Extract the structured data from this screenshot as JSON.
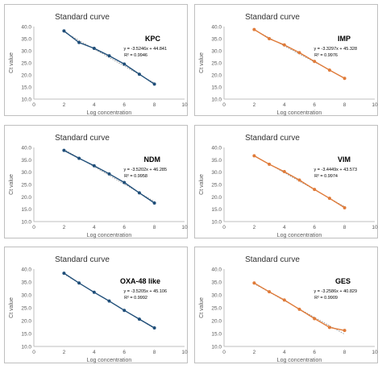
{
  "chart_data": [
    {
      "type": "scatter",
      "title": "Standard curve",
      "gene": "KPC",
      "xlabel": "Log concentration",
      "ylabel": "Ct value",
      "xlim": [
        0,
        10
      ],
      "ylim": [
        10.0,
        40.0
      ],
      "x_ticks": [
        0,
        2,
        4,
        6,
        8,
        10
      ],
      "y_ticks": [
        "10.0",
        "15.0",
        "20.0",
        "25.0",
        "30.0",
        "35.0",
        "40.0"
      ],
      "equation": "y = -3.5246x + 44.841",
      "r2": "R² = 0.9946",
      "trend": {
        "slope": -3.5246,
        "intercept": 44.841
      },
      "x": [
        2,
        3,
        4,
        5,
        6,
        7,
        8
      ],
      "y": [
        38.2,
        33.4,
        31.0,
        27.9,
        24.5,
        20.3,
        16.2
      ],
      "color": "#1f4e79"
    },
    {
      "type": "scatter",
      "title": "Standard curve",
      "gene": "IMP",
      "xlabel": "Log concentration",
      "ylabel": "Ct value",
      "xlim": [
        0,
        10
      ],
      "ylim": [
        10.0,
        40.0
      ],
      "x_ticks": [
        0,
        2,
        4,
        6,
        8,
        10
      ],
      "y_ticks": [
        "10.0",
        "15.0",
        "20.0",
        "25.0",
        "30.0",
        "35.0",
        "40.0"
      ],
      "equation": "y = -3.3297x + 45.328",
      "r2": "R² = 0.9976",
      "trend": {
        "slope": -3.3297,
        "intercept": 45.328
      },
      "x": [
        2,
        3,
        4,
        5,
        6,
        7,
        8
      ],
      "y": [
        38.8,
        35.0,
        32.4,
        29.2,
        25.6,
        22.0,
        18.6
      ],
      "color": "#e07b39"
    },
    {
      "type": "scatter",
      "title": "Standard curve",
      "gene": "NDM",
      "xlabel": "Log concentration",
      "ylabel": "Ct value",
      "xlim": [
        0,
        10
      ],
      "ylim": [
        10.0,
        40.0
      ],
      "x_ticks": [
        0,
        2,
        4,
        6,
        8,
        10
      ],
      "y_ticks": [
        "10.0",
        "15.0",
        "20.0",
        "25.0",
        "30.0",
        "35.0",
        "40.0"
      ],
      "equation": "y = -3.5202x + 46.285",
      "r2": "R² = 0.9958",
      "trend": {
        "slope": -3.5202,
        "intercept": 46.285
      },
      "x": [
        2,
        3,
        4,
        5,
        6,
        7,
        8
      ],
      "y": [
        38.8,
        35.6,
        32.6,
        29.3,
        25.8,
        21.6,
        17.5
      ],
      "color": "#1f4e79"
    },
    {
      "type": "scatter",
      "title": "Standard curve",
      "gene": "VIM",
      "xlabel": "Log concentration",
      "ylabel": "Ct value",
      "xlim": [
        0,
        10
      ],
      "ylim": [
        10.0,
        40.0
      ],
      "x_ticks": [
        0,
        2,
        4,
        6,
        8,
        10
      ],
      "y_ticks": [
        "10.0",
        "15.0",
        "20.0",
        "25.0",
        "30.0",
        "35.0",
        "40.0"
      ],
      "equation": "y = -3.4449x + 43.573",
      "r2": "R² = 0.9974",
      "trend": {
        "slope": -3.4449,
        "intercept": 43.573
      },
      "x": [
        2,
        3,
        4,
        5,
        6,
        7,
        8
      ],
      "y": [
        36.6,
        33.2,
        30.2,
        26.8,
        23.0,
        19.4,
        15.6
      ],
      "color": "#e07b39"
    },
    {
      "type": "scatter",
      "title": "Standard curve",
      "gene": "OXA-48 like",
      "xlabel": "Log concentration",
      "ylabel": "Ct value",
      "xlim": [
        0,
        10
      ],
      "ylim": [
        10.0,
        40.0
      ],
      "x_ticks": [
        0,
        2,
        4,
        6,
        8,
        10
      ],
      "y_ticks": [
        "10.0",
        "15.0",
        "20.0",
        "25.0",
        "30.0",
        "35.0",
        "40.0"
      ],
      "equation": "y = -3.5205x + 45.106",
      "r2": "R² = 0.9992",
      "trend": {
        "slope": -3.5205,
        "intercept": 45.106
      },
      "x": [
        2,
        3,
        4,
        5,
        6,
        7,
        8
      ],
      "y": [
        38.4,
        34.6,
        31.0,
        27.6,
        24.0,
        20.6,
        17.2
      ],
      "color": "#1f4e79"
    },
    {
      "type": "scatter",
      "title": "Standard curve",
      "gene": "GES",
      "xlabel": "Log concentration",
      "ylabel": "Ct value",
      "xlim": [
        0,
        10
      ],
      "ylim": [
        10.0,
        40.0
      ],
      "x_ticks": [
        0,
        2,
        4,
        6,
        8,
        10
      ],
      "y_ticks": [
        "10.0",
        "15.0",
        "20.0",
        "25.0",
        "30.0",
        "35.0",
        "40.0"
      ],
      "equation": "y = -3.2586x + 40.829",
      "r2": "R² = 0.9909",
      "trend": {
        "slope": -3.2586,
        "intercept": 40.829
      },
      "x": [
        2,
        3,
        4,
        5,
        6,
        7,
        8
      ],
      "y": [
        34.6,
        31.2,
        28.0,
        24.4,
        20.8,
        17.4,
        16.2
      ],
      "color": "#e07b39"
    }
  ]
}
